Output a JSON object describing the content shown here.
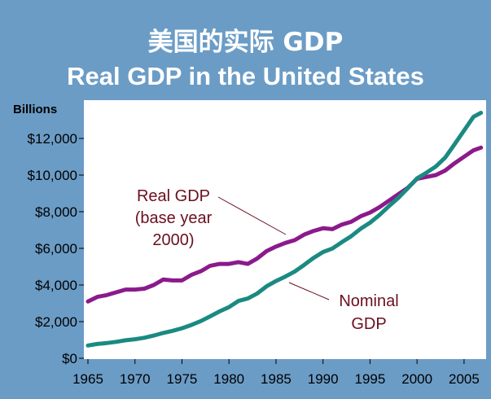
{
  "title_cn": "美国的实际 GDP",
  "title_en": "Real GDP in the United States",
  "colors": {
    "background": "#6b9cc6",
    "plot_bg": "#ffffff",
    "real_series": "#8b1a8b",
    "nominal_series": "#1a8a82",
    "annotation_text": "#6b0f1f"
  },
  "chart_data": {
    "type": "line",
    "ylabel": "Billions",
    "xlim": [
      1965,
      2007
    ],
    "ylim": [
      0,
      13500
    ],
    "x_ticks": [
      1965,
      1970,
      1975,
      1980,
      1985,
      1990,
      1995,
      2000,
      2005
    ],
    "y_ticks": [
      0,
      2000,
      4000,
      6000,
      8000,
      10000,
      12000
    ],
    "y_tick_labels": [
      "$0",
      "$2,000",
      "$4,000",
      "$6,000",
      "$8,000",
      "$10,000",
      "$12,000"
    ],
    "grid": false,
    "series": [
      {
        "key": "real",
        "annotation": [
          "Real GDP",
          "(base year",
          "2000)"
        ],
        "x": [
          1965,
          1966,
          1967,
          1968,
          1969,
          1970,
          1971,
          1972,
          1973,
          1974,
          1975,
          1976,
          1977,
          1978,
          1979,
          1980,
          1981,
          1982,
          1983,
          1984,
          1985,
          1986,
          1987,
          1988,
          1989,
          1990,
          1991,
          1992,
          1993,
          1994,
          1995,
          1996,
          1997,
          1998,
          1999,
          2000,
          2001,
          2002,
          2003,
          2004,
          2005,
          2006,
          2006.8
        ],
        "y": [
          3100,
          3350,
          3450,
          3600,
          3750,
          3750,
          3800,
          4000,
          4300,
          4250,
          4250,
          4550,
          4750,
          5050,
          5150,
          5150,
          5250,
          5150,
          5450,
          5850,
          6100,
          6300,
          6450,
          6750,
          6950,
          7100,
          7050,
          7300,
          7450,
          7750,
          7950,
          8250,
          8600,
          8950,
          9300,
          9800,
          9900,
          10000,
          10250,
          10650,
          11000,
          11350,
          11500
        ]
      },
      {
        "key": "nominal",
        "annotation": [
          "Nominal",
          "GDP"
        ],
        "x": [
          1965,
          1966,
          1967,
          1968,
          1969,
          1970,
          1971,
          1972,
          1973,
          1974,
          1975,
          1976,
          1977,
          1978,
          1979,
          1980,
          1981,
          1982,
          1983,
          1984,
          1985,
          1986,
          1987,
          1988,
          1989,
          1990,
          1991,
          1992,
          1993,
          1994,
          1995,
          1996,
          1997,
          1998,
          1999,
          2000,
          2001,
          2002,
          2003,
          2004,
          2005,
          2006,
          2006.8
        ],
        "y": [
          700,
          780,
          830,
          900,
          980,
          1040,
          1120,
          1240,
          1380,
          1500,
          1640,
          1820,
          2030,
          2290,
          2560,
          2790,
          3130,
          3260,
          3540,
          3930,
          4220,
          4460,
          4740,
          5100,
          5480,
          5800,
          5990,
          6340,
          6660,
          7070,
          7400,
          7820,
          8300,
          8750,
          9270,
          9820,
          10130,
          10470,
          10960,
          11690,
          12430,
          13180,
          13400
        ]
      }
    ]
  }
}
